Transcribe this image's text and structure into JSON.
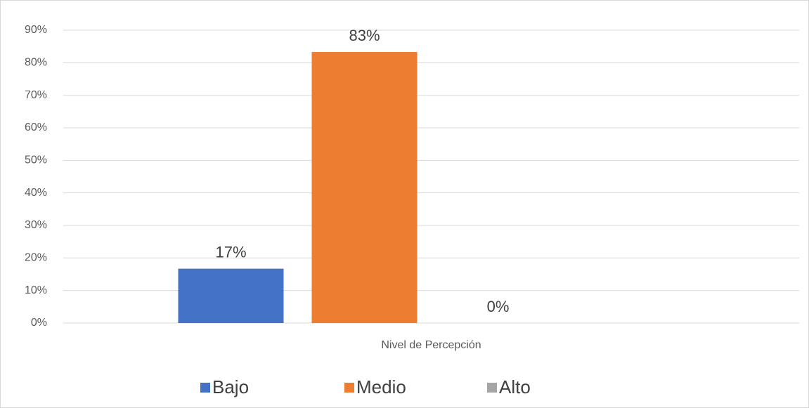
{
  "chart_data": {
    "type": "bar",
    "categories": [
      "Nivel de Percepción"
    ],
    "series": [
      {
        "name": "Bajo",
        "color": "#4472c4",
        "values": [
          16.7
        ],
        "value_labels": [
          "17%"
        ]
      },
      {
        "name": "Medio",
        "color": "#ed7d31",
        "values": [
          83.3
        ],
        "value_labels": [
          "83%"
        ]
      },
      {
        "name": "Alto",
        "color": "#a5a5a5",
        "values": [
          0
        ],
        "value_labels": [
          "0%"
        ]
      }
    ],
    "ylim": [
      0,
      90
    ],
    "yticks": [
      {
        "value": 0,
        "label": "0%"
      },
      {
        "value": 10,
        "label": "10%"
      },
      {
        "value": 20,
        "label": "20%"
      },
      {
        "value": 30,
        "label": "30%"
      },
      {
        "value": 40,
        "label": "40%"
      },
      {
        "value": 50,
        "label": "50%"
      },
      {
        "value": 60,
        "label": "60%"
      },
      {
        "value": 70,
        "label": "70%"
      },
      {
        "value": 80,
        "label": "80%"
      },
      {
        "value": 90,
        "label": "90%"
      }
    ],
    "grid": true,
    "legend": "bottom"
  }
}
